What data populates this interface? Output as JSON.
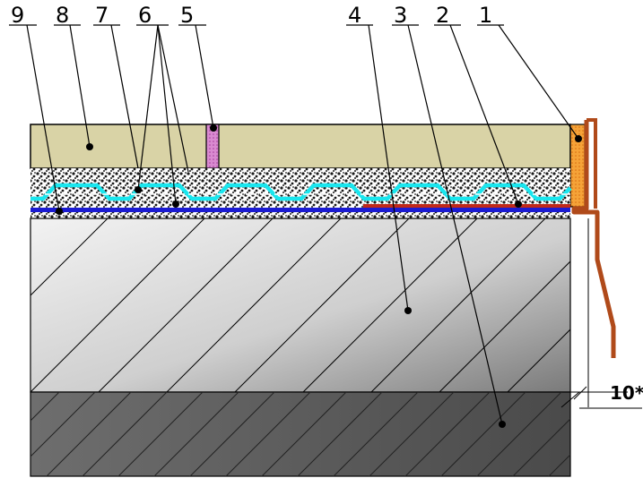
{
  "colors": {
    "screed": "#d8d2a4",
    "tile_orange": "#f08a1a",
    "expansion_pink": "#c35ab8",
    "membrane_cyan": "#19e8f0",
    "gravel": "#1a1a1a",
    "blue_layer": "#1b1bd2",
    "red_layer": "#c0281a",
    "slab_light": "#e8e8e8",
    "slab_dark": "#6a6a6a",
    "subgrade": "#555555",
    "flashing": "#b04a1a"
  },
  "callouts": [
    {
      "label": "9"
    },
    {
      "label": "8"
    },
    {
      "label": "7"
    },
    {
      "label": "6"
    },
    {
      "label": "5"
    },
    {
      "label": "4"
    },
    {
      "label": "3"
    },
    {
      "label": "2"
    },
    {
      "label": "1"
    }
  ],
  "dimension_label": "10*"
}
